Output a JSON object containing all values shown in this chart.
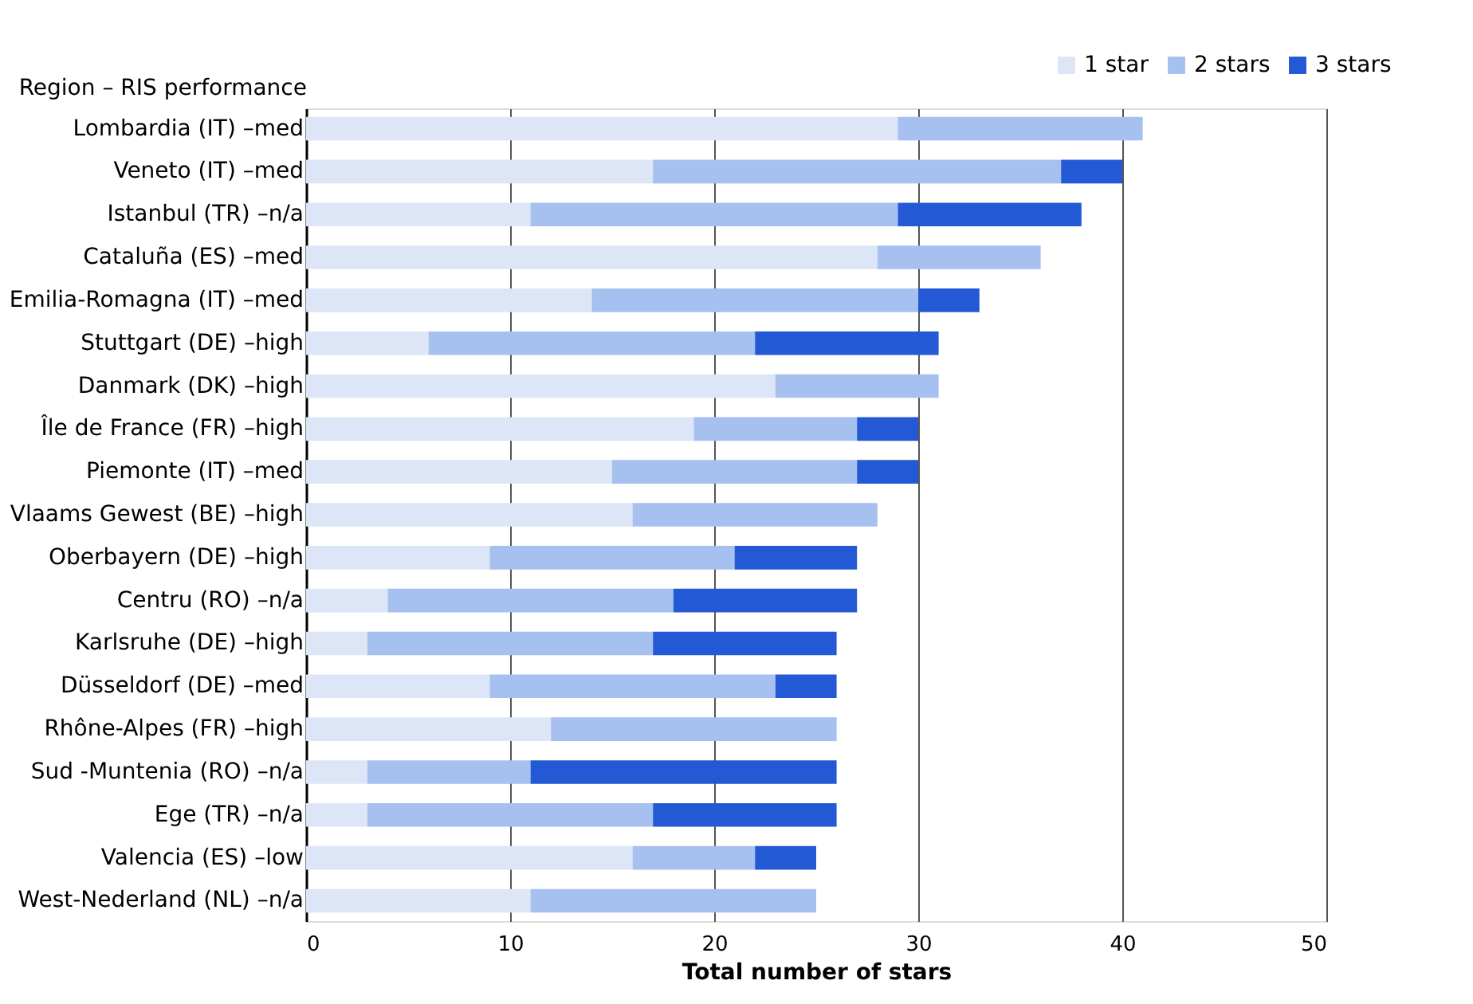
{
  "chart_data": {
    "type": "bar",
    "orientation": "horizontal",
    "stacked": true,
    "xlabel": "Total number of stars",
    "ylabel": "Region – RIS performance",
    "categories": [
      "Lombardia (IT) –med",
      "Veneto (IT) –med",
      "Istanbul (TR) –n/a",
      "Cataluña (ES) –med",
      "Emilia-Romagna (IT) –med",
      "Stuttgart (DE) –high",
      "Danmark (DK) –high",
      "Île de France (FR) –high",
      "Piemonte (IT) –med",
      "Vlaams Gewest (BE) –high",
      "Oberbayern (DE) –high",
      "Centru (RO) –n/a",
      "Karlsruhe (DE) –high",
      "Düsseldorf (DE) –med",
      "Rhône-Alpes (FR) –high",
      "Sud -Muntenia (RO) –n/a",
      "Ege (TR) –n/a",
      "Valencia (ES) –low",
      "West-Nederland (NL) –n/a"
    ],
    "series": [
      {
        "name": "1 star",
        "color": "#dde6f7",
        "values": [
          29,
          17,
          11,
          28,
          14,
          6,
          23,
          19,
          15,
          16,
          9,
          4,
          3,
          9,
          12,
          3,
          3,
          16,
          11
        ]
      },
      {
        "name": "2 stars",
        "color": "#a6c0ef",
        "values": [
          12,
          20,
          18,
          8,
          16,
          16,
          8,
          8,
          12,
          12,
          12,
          14,
          14,
          14,
          14,
          8,
          14,
          6,
          14
        ]
      },
      {
        "name": "3 stars",
        "color": "#2459d6",
        "values": [
          0,
          3,
          9,
          0,
          3,
          9,
          0,
          3,
          3,
          0,
          6,
          9,
          9,
          3,
          0,
          15,
          9,
          3,
          0
        ]
      }
    ],
    "xlim": [
      0,
      50
    ],
    "xticks": [
      0,
      10,
      20,
      30,
      40,
      50
    ],
    "grid": "x",
    "legend": "top right"
  }
}
